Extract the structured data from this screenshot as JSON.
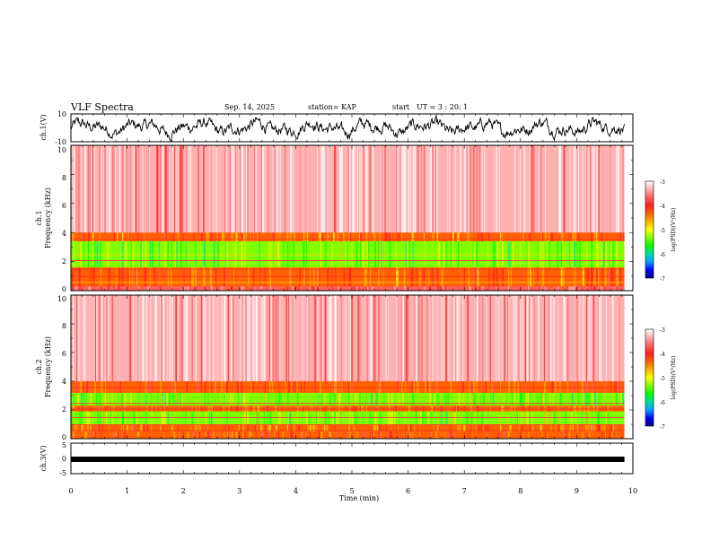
{
  "header": {
    "title": "VLF Spectra",
    "date": "Sep. 14, 2025",
    "station": "station= KAP",
    "start_label": "start",
    "start_ut": "UT =  3 : 20: 1"
  },
  "chart_data": [
    {
      "type": "line",
      "panel": "ch1_waveform",
      "ylabel": "ch.1(V)",
      "ylim": [
        -10,
        10
      ],
      "yticks": [
        "10",
        "-10"
      ],
      "xlim": [
        0,
        10
      ],
      "series": [
        {
          "name": "ch.1",
          "description_only": false,
          "color": "#000000",
          "baseline": 0,
          "amplitude_range": [
            -6,
            6
          ]
        }
      ]
    },
    {
      "type": "heatmap",
      "panel": "ch1_spectrogram",
      "ylabel": "ch.1",
      "ylabel2": "Frequency  (kHz)",
      "ylim": [
        0,
        10
      ],
      "yticks": [
        "0",
        "2",
        "4",
        "6",
        "8",
        "10"
      ],
      "xlim": [
        0,
        9.85
      ],
      "bands_khz": [
        {
          "range": [
            0.0,
            0.3
          ],
          "level": -3.8
        },
        {
          "range": [
            0.3,
            1.6
          ],
          "level": -4.3
        },
        {
          "range": [
            1.6,
            3.4
          ],
          "level": -5.4
        },
        {
          "range": [
            3.4,
            4.0
          ],
          "level": -4.4
        },
        {
          "range": [
            4.0,
            10.0
          ],
          "level": -3.4
        }
      ]
    },
    {
      "type": "heatmap",
      "panel": "ch2_spectrogram",
      "ylabel": "ch.2",
      "ylabel2": "Frequency  (kHz)",
      "ylim": [
        0,
        10
      ],
      "yticks": [
        "0",
        "2",
        "4",
        "6",
        "8",
        "10"
      ],
      "xlim": [
        0,
        9.85
      ],
      "bands_khz": [
        {
          "range": [
            0.0,
            0.5
          ],
          "level": -4.2
        },
        {
          "range": [
            0.5,
            1.0
          ],
          "level": -4.4
        },
        {
          "range": [
            1.0,
            1.9
          ],
          "level": -5.3
        },
        {
          "range": [
            1.9,
            2.3
          ],
          "level": -4.3
        },
        {
          "range": [
            2.3,
            3.2
          ],
          "level": -5.4
        },
        {
          "range": [
            3.2,
            4.0
          ],
          "level": -4.2
        },
        {
          "range": [
            4.0,
            10.0
          ],
          "level": -3.4
        }
      ]
    },
    {
      "type": "line",
      "panel": "ch3_waveform",
      "ylabel": "ch.3(V)",
      "ylim": [
        -5,
        5
      ],
      "yticks": [
        "5",
        "0",
        "-5"
      ],
      "xlim": [
        0,
        10
      ],
      "xlabel": "Time  (min)",
      "xticks": [
        "0",
        "1",
        "2",
        "3",
        "4",
        "5",
        "6",
        "7",
        "8",
        "9",
        "10"
      ],
      "series": [
        {
          "name": "ch.3",
          "color": "#000000",
          "level": -0.3
        }
      ]
    }
  ],
  "colorbar": {
    "label": "log(PSD)(V²/Hz)",
    "range": [
      -7,
      -3
    ],
    "ticks": [
      "-3",
      "-4",
      "-5",
      "-6",
      "-7"
    ],
    "colors": [
      "#000080",
      "#0000ff",
      "#00a0ff",
      "#00e0a0",
      "#00ff00",
      "#80ff00",
      "#ffff00",
      "#ffb000",
      "#ff6000",
      "#ff2020",
      "#ff6060",
      "#ffb0b0",
      "#ffffff"
    ]
  }
}
